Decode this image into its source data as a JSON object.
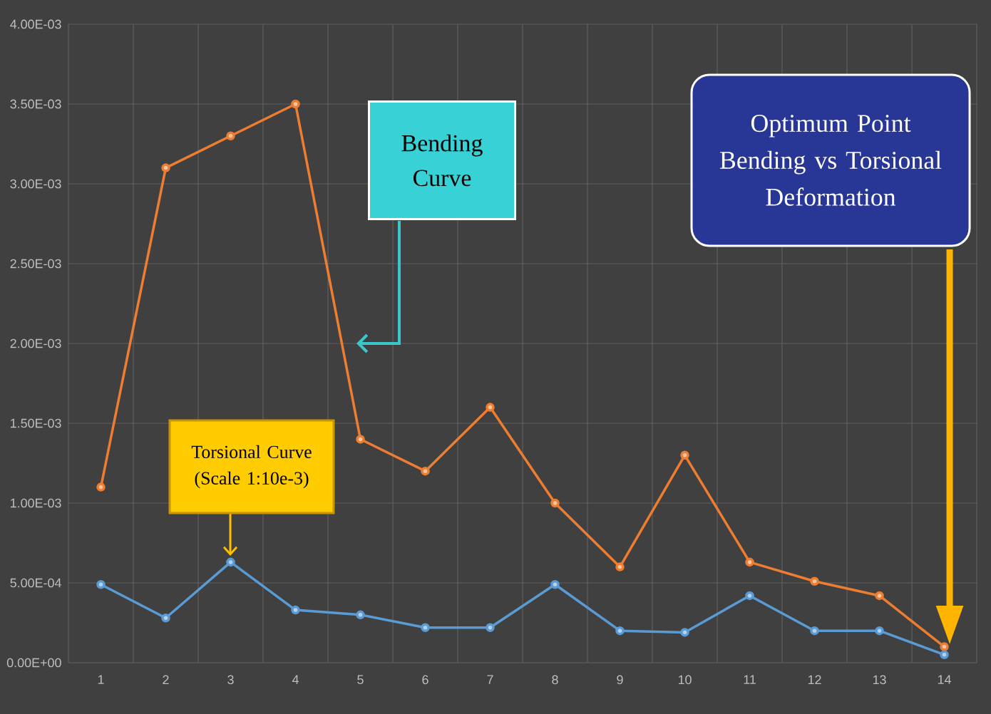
{
  "chart_data": {
    "type": "line",
    "categories": [
      "1",
      "2",
      "3",
      "4",
      "5",
      "6",
      "7",
      "8",
      "9",
      "10",
      "11",
      "12",
      "13",
      "14"
    ],
    "series": [
      {
        "color": "#ed7d31",
        "values": [
          0.0011,
          0.0031,
          0.0033,
          0.0035,
          0.0014,
          0.0012,
          0.0016,
          0.001,
          0.0006,
          0.0013,
          0.00063,
          0.00051,
          0.00042,
          0.0001
        ]
      },
      {
        "color": "#5b9bd5",
        "values": [
          0.00049,
          0.00028,
          0.00063,
          0.00033,
          0.0003,
          0.00022,
          0.00022,
          0.00049,
          0.0002,
          0.00019,
          0.00042,
          0.0002,
          0.0002,
          5e-05
        ]
      }
    ],
    "ylim": [
      0,
      0.004
    ],
    "yticks": [
      {
        "value": 0,
        "label": "0.00E+00"
      },
      {
        "value": 0.0005,
        "label": "5.00E-04"
      },
      {
        "value": 0.001,
        "label": "1.00E-03"
      },
      {
        "value": 0.0015,
        "label": "1.50E-03"
      },
      {
        "value": 0.002,
        "label": "2.00E-03"
      },
      {
        "value": 0.0025,
        "label": "2.50E-03"
      },
      {
        "value": 0.003,
        "label": "3.00E-03"
      },
      {
        "value": 0.0035,
        "label": "3.50E-03"
      },
      {
        "value": 0.004,
        "label": "4.00E-03"
      }
    ],
    "grid": true,
    "marker": "circle",
    "annotations": [
      "Bending Curve",
      "Torsional Curve (Scale 1:10e-3)",
      "Optimum Point Bending vs Torsional Deformation"
    ]
  }
}
